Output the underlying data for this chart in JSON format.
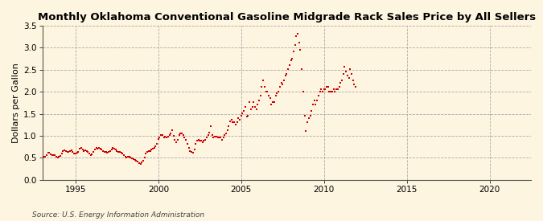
{
  "title": "Monthly Oklahoma Conventional Gasoline Midgrade Rack Sales Price by All Sellers",
  "ylabel": "Dollars per Gallon",
  "source": "Source: U.S. Energy Information Administration",
  "xlim": [
    1993.0,
    2022.5
  ],
  "ylim": [
    0.0,
    3.5
  ],
  "xticks": [
    1995,
    2000,
    2005,
    2010,
    2015,
    2020
  ],
  "yticks": [
    0.0,
    0.5,
    1.0,
    1.5,
    2.0,
    2.5,
    3.0,
    3.5
  ],
  "background_color": "#FDF5E0",
  "plot_bg_color": "#FDF5E0",
  "marker_color": "#CC0000",
  "title_fontsize": 9.5,
  "label_fontsize": 8,
  "tick_fontsize": 7.5,
  "data": [
    [
      1993.0,
      0.5
    ],
    [
      1993.08,
      0.53
    ],
    [
      1993.17,
      0.52
    ],
    [
      1993.25,
      0.57
    ],
    [
      1993.33,
      0.61
    ],
    [
      1993.42,
      0.62
    ],
    [
      1993.5,
      0.58
    ],
    [
      1993.58,
      0.56
    ],
    [
      1993.67,
      0.57
    ],
    [
      1993.75,
      0.56
    ],
    [
      1993.83,
      0.52
    ],
    [
      1993.92,
      0.5
    ],
    [
      1994.0,
      0.52
    ],
    [
      1994.08,
      0.54
    ],
    [
      1994.17,
      0.6
    ],
    [
      1994.25,
      0.65
    ],
    [
      1994.33,
      0.68
    ],
    [
      1994.42,
      0.66
    ],
    [
      1994.5,
      0.64
    ],
    [
      1994.58,
      0.63
    ],
    [
      1994.67,
      0.65
    ],
    [
      1994.75,
      0.67
    ],
    [
      1994.83,
      0.63
    ],
    [
      1994.92,
      0.59
    ],
    [
      1995.0,
      0.6
    ],
    [
      1995.08,
      0.61
    ],
    [
      1995.17,
      0.64
    ],
    [
      1995.25,
      0.71
    ],
    [
      1995.33,
      0.73
    ],
    [
      1995.42,
      0.69
    ],
    [
      1995.5,
      0.66
    ],
    [
      1995.58,
      0.67
    ],
    [
      1995.67,
      0.66
    ],
    [
      1995.75,
      0.63
    ],
    [
      1995.83,
      0.59
    ],
    [
      1995.92,
      0.56
    ],
    [
      1996.0,
      0.58
    ],
    [
      1996.08,
      0.63
    ],
    [
      1996.17,
      0.69
    ],
    [
      1996.25,
      0.73
    ],
    [
      1996.33,
      0.71
    ],
    [
      1996.42,
      0.73
    ],
    [
      1996.5,
      0.71
    ],
    [
      1996.58,
      0.69
    ],
    [
      1996.67,
      0.66
    ],
    [
      1996.75,
      0.64
    ],
    [
      1996.83,
      0.63
    ],
    [
      1996.92,
      0.61
    ],
    [
      1997.0,
      0.63
    ],
    [
      1997.08,
      0.66
    ],
    [
      1997.17,
      0.69
    ],
    [
      1997.25,
      0.73
    ],
    [
      1997.33,
      0.71
    ],
    [
      1997.42,
      0.69
    ],
    [
      1997.5,
      0.66
    ],
    [
      1997.58,
      0.64
    ],
    [
      1997.67,
      0.63
    ],
    [
      1997.75,
      0.61
    ],
    [
      1997.83,
      0.59
    ],
    [
      1997.92,
      0.56
    ],
    [
      1998.0,
      0.53
    ],
    [
      1998.08,
      0.51
    ],
    [
      1998.17,
      0.52
    ],
    [
      1998.25,
      0.53
    ],
    [
      1998.33,
      0.51
    ],
    [
      1998.42,
      0.49
    ],
    [
      1998.5,
      0.47
    ],
    [
      1998.58,
      0.45
    ],
    [
      1998.67,
      0.43
    ],
    [
      1998.75,
      0.41
    ],
    [
      1998.83,
      0.38
    ],
    [
      1998.92,
      0.37
    ],
    [
      1999.0,
      0.4
    ],
    [
      1999.08,
      0.44
    ],
    [
      1999.17,
      0.51
    ],
    [
      1999.25,
      0.59
    ],
    [
      1999.33,
      0.63
    ],
    [
      1999.42,
      0.66
    ],
    [
      1999.5,
      0.66
    ],
    [
      1999.58,
      0.69
    ],
    [
      1999.67,
      0.71
    ],
    [
      1999.75,
      0.73
    ],
    [
      1999.83,
      0.76
    ],
    [
      1999.92,
      0.82
    ],
    [
      2000.0,
      0.92
    ],
    [
      2000.08,
      0.97
    ],
    [
      2000.17,
      1.02
    ],
    [
      2000.25,
      1.01
    ],
    [
      2000.33,
      0.96
    ],
    [
      2000.42,
      0.99
    ],
    [
      2000.5,
      0.96
    ],
    [
      2000.58,
      0.99
    ],
    [
      2000.67,
      1.01
    ],
    [
      2000.75,
      1.06
    ],
    [
      2000.83,
      1.12
    ],
    [
      2000.92,
      1.0
    ],
    [
      2001.0,
      0.91
    ],
    [
      2001.08,
      0.86
    ],
    [
      2001.17,
      0.91
    ],
    [
      2001.25,
      1.01
    ],
    [
      2001.33,
      1.06
    ],
    [
      2001.42,
      1.06
    ],
    [
      2001.5,
      1.01
    ],
    [
      2001.58,
      0.96
    ],
    [
      2001.67,
      0.91
    ],
    [
      2001.75,
      0.81
    ],
    [
      2001.83,
      0.73
    ],
    [
      2001.92,
      0.66
    ],
    [
      2002.0,
      0.63
    ],
    [
      2002.08,
      0.61
    ],
    [
      2002.17,
      0.69
    ],
    [
      2002.25,
      0.81
    ],
    [
      2002.33,
      0.89
    ],
    [
      2002.42,
      0.91
    ],
    [
      2002.5,
      0.89
    ],
    [
      2002.58,
      0.89
    ],
    [
      2002.67,
      0.86
    ],
    [
      2002.75,
      0.89
    ],
    [
      2002.83,
      0.91
    ],
    [
      2002.92,
      0.96
    ],
    [
      2003.0,
      1.02
    ],
    [
      2003.08,
      1.08
    ],
    [
      2003.17,
      1.22
    ],
    [
      2003.25,
      1.01
    ],
    [
      2003.33,
      0.96
    ],
    [
      2003.42,
      0.99
    ],
    [
      2003.5,
      0.99
    ],
    [
      2003.58,
      0.96
    ],
    [
      2003.67,
      0.96
    ],
    [
      2003.75,
      0.96
    ],
    [
      2003.83,
      0.91
    ],
    [
      2003.92,
      0.96
    ],
    [
      2004.0,
      1.01
    ],
    [
      2004.08,
      1.06
    ],
    [
      2004.17,
      1.12
    ],
    [
      2004.25,
      1.22
    ],
    [
      2004.33,
      1.32
    ],
    [
      2004.42,
      1.36
    ],
    [
      2004.5,
      1.31
    ],
    [
      2004.58,
      1.31
    ],
    [
      2004.67,
      1.26
    ],
    [
      2004.75,
      1.31
    ],
    [
      2004.83,
      1.41
    ],
    [
      2004.92,
      1.36
    ],
    [
      2005.0,
      1.46
    ],
    [
      2005.08,
      1.51
    ],
    [
      2005.17,
      1.56
    ],
    [
      2005.25,
      1.66
    ],
    [
      2005.33,
      1.43
    ],
    [
      2005.42,
      1.46
    ],
    [
      2005.5,
      1.76
    ],
    [
      2005.58,
      1.61
    ],
    [
      2005.67,
      1.66
    ],
    [
      2005.75,
      1.76
    ],
    [
      2005.83,
      1.66
    ],
    [
      2005.92,
      1.61
    ],
    [
      2006.0,
      1.71
    ],
    [
      2006.08,
      1.81
    ],
    [
      2006.17,
      1.91
    ],
    [
      2006.25,
      2.11
    ],
    [
      2006.33,
      2.26
    ],
    [
      2006.42,
      2.11
    ],
    [
      2006.5,
      2.01
    ],
    [
      2006.58,
      2.01
    ],
    [
      2006.67,
      1.91
    ],
    [
      2006.75,
      1.86
    ],
    [
      2006.83,
      1.71
    ],
    [
      2006.92,
      1.76
    ],
    [
      2007.0,
      1.76
    ],
    [
      2007.08,
      1.91
    ],
    [
      2007.17,
      1.96
    ],
    [
      2007.25,
      2.01
    ],
    [
      2007.33,
      2.11
    ],
    [
      2007.42,
      2.21
    ],
    [
      2007.5,
      2.16
    ],
    [
      2007.58,
      2.26
    ],
    [
      2007.67,
      2.36
    ],
    [
      2007.75,
      2.41
    ],
    [
      2007.83,
      2.51
    ],
    [
      2007.92,
      2.61
    ],
    [
      2008.0,
      2.71
    ],
    [
      2008.08,
      2.76
    ],
    [
      2008.17,
      2.91
    ],
    [
      2008.25,
      3.06
    ],
    [
      2008.33,
      3.26
    ],
    [
      2008.42,
      3.31
    ],
    [
      2008.5,
      3.11
    ],
    [
      2008.58,
      2.96
    ],
    [
      2008.67,
      2.51
    ],
    [
      2008.75,
      2.01
    ],
    [
      2008.83,
      1.46
    ],
    [
      2008.92,
      1.11
    ],
    [
      2009.0,
      1.31
    ],
    [
      2009.08,
      1.41
    ],
    [
      2009.17,
      1.46
    ],
    [
      2009.25,
      1.56
    ],
    [
      2009.33,
      1.71
    ],
    [
      2009.42,
      1.81
    ],
    [
      2009.5,
      1.71
    ],
    [
      2009.58,
      1.81
    ],
    [
      2009.67,
      1.91
    ],
    [
      2009.75,
      2.01
    ],
    [
      2009.83,
      2.06
    ],
    [
      2009.92,
      2.01
    ],
    [
      2010.0,
      2.06
    ],
    [
      2010.08,
      2.06
    ],
    [
      2010.17,
      2.11
    ],
    [
      2010.25,
      2.11
    ],
    [
      2010.33,
      2.01
    ],
    [
      2010.42,
      2.01
    ],
    [
      2010.5,
      2.01
    ],
    [
      2010.58,
      2.06
    ],
    [
      2010.67,
      2.01
    ],
    [
      2010.75,
      2.06
    ],
    [
      2010.83,
      2.06
    ],
    [
      2010.92,
      2.11
    ],
    [
      2011.0,
      2.21
    ],
    [
      2011.08,
      2.26
    ],
    [
      2011.17,
      2.41
    ],
    [
      2011.25,
      2.56
    ],
    [
      2011.33,
      2.46
    ],
    [
      2011.42,
      2.36
    ],
    [
      2011.5,
      2.31
    ],
    [
      2011.58,
      2.51
    ],
    [
      2011.67,
      2.41
    ],
    [
      2011.75,
      2.26
    ],
    [
      2011.83,
      2.16
    ],
    [
      2011.92,
      2.11
    ]
  ]
}
